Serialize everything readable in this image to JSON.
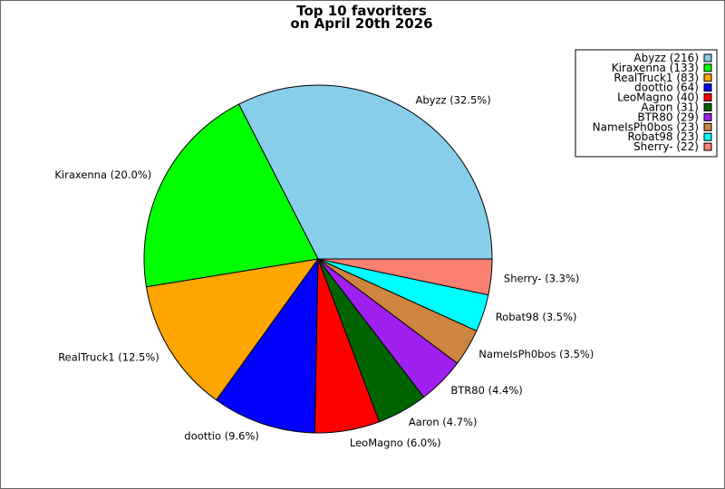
{
  "chart_data": {
    "type": "pie",
    "title_line1": "Top 10 favoriters",
    "title_line2": "on April 20th 2026",
    "slices": [
      {
        "name": "Abyzz",
        "value": 216,
        "percent_label": "Abyzz (32.5%)",
        "legend_label": "Abyzz (216)",
        "color": "#87ceeb"
      },
      {
        "name": "Kiraxenna",
        "value": 133,
        "percent_label": "Kiraxenna (20.0%)",
        "legend_label": "Kiraxenna (133)",
        "color": "#00ff00"
      },
      {
        "name": "RealTruck1",
        "value": 83,
        "percent_label": "RealTruck1 (12.5%)",
        "legend_label": "RealTruck1 (83)",
        "color": "#ffa500"
      },
      {
        "name": "doottio",
        "value": 64,
        "percent_label": "doottio (9.6%)",
        "legend_label": "doottio (64)",
        "color": "#0000ff"
      },
      {
        "name": "LeoMagno",
        "value": 40,
        "percent_label": "LeoMagno (6.0%)",
        "legend_label": "LeoMagno (40)",
        "color": "#ff0000"
      },
      {
        "name": "Aaron",
        "value": 31,
        "percent_label": "Aaron (4.7%)",
        "legend_label": "Aaron (31)",
        "color": "#006400"
      },
      {
        "name": "BTR80",
        "value": 29,
        "percent_label": "BTR80 (4.4%)",
        "legend_label": "BTR80 (29)",
        "color": "#a020f0"
      },
      {
        "name": "NameIsPh0bos",
        "value": 23,
        "percent_label": "NameIsPh0bos (3.5%)",
        "legend_label": "NameIsPh0bos (23)",
        "color": "#cd853f"
      },
      {
        "name": "Robat98",
        "value": 23,
        "percent_label": "Robat98 (3.5%)",
        "legend_label": "Robat98 (23)",
        "color": "#00ffff"
      },
      {
        "name": "Sherry-",
        "value": 22,
        "percent_label": "Sherry- (3.3%)",
        "legend_label": "Sherry- (22)",
        "color": "#fa8072"
      }
    ],
    "start_angle_deg": 0,
    "direction": "counterclockwise",
    "legend_position": "top-right"
  }
}
